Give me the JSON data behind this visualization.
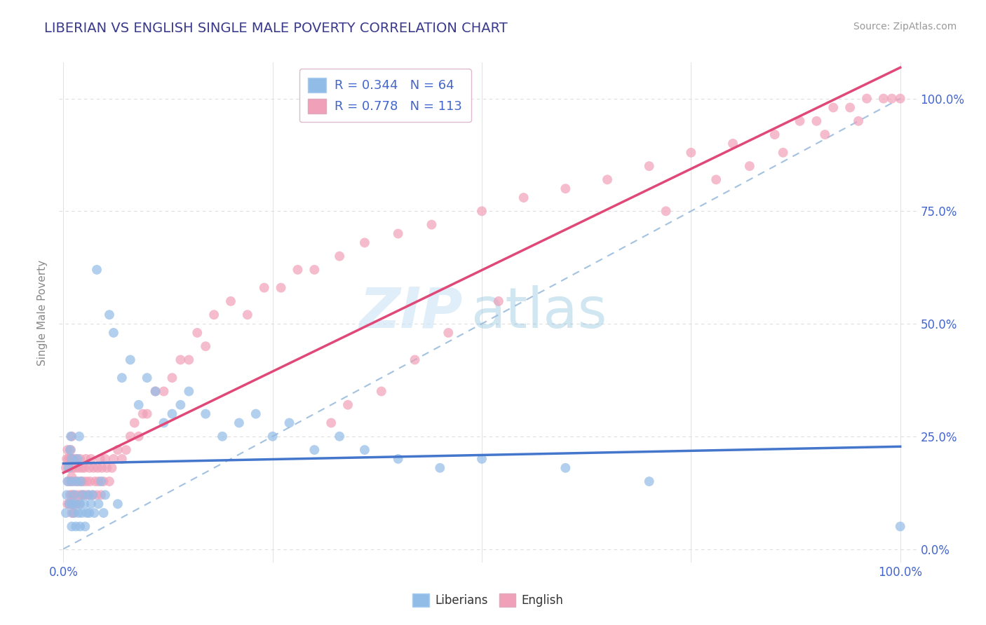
{
  "title": "LIBERIAN VS ENGLISH SINGLE MALE POVERTY CORRELATION CHART",
  "source": "Source: ZipAtlas.com",
  "ylabel": "Single Male Poverty",
  "title_color": "#3a3a8c",
  "title_fontsize": 14,
  "watermark_zip": "ZIP",
  "watermark_atlas": "atlas",
  "liberian_color": "#92bce8",
  "english_color": "#f0a0b8",
  "liberian_line_color": "#4477cc",
  "english_line_color": "#e04878",
  "dashed_line_color": "#99bbdd",
  "background_color": "#ffffff",
  "grid_color": "#dddddd",
  "axis_label_color": "#4466cc",
  "ylabel_color": "#888888",
  "source_color": "#999999",
  "legend_label_color": "#333333",
  "legend_value_color": "#4466cc",
  "legend_border_color": "#ffaacc",
  "liberian_n": 64,
  "english_n": 113,
  "liberian_r": 0.344,
  "english_r": 0.778,
  "marker_size": 100,
  "marker_alpha": 0.7,
  "liberian_scatter_x": [
    0.003,
    0.004,
    0.005,
    0.006,
    0.007,
    0.008,
    0.009,
    0.01,
    0.01,
    0.01,
    0.01,
    0.012,
    0.013,
    0.015,
    0.015,
    0.016,
    0.017,
    0.018,
    0.019,
    0.02,
    0.02,
    0.021,
    0.022,
    0.023,
    0.025,
    0.026,
    0.028,
    0.03,
    0.031,
    0.033,
    0.035,
    0.037,
    0.04,
    0.042,
    0.045,
    0.048,
    0.05,
    0.055,
    0.06,
    0.065,
    0.07,
    0.08,
    0.09,
    0.1,
    0.11,
    0.12,
    0.13,
    0.14,
    0.15,
    0.17,
    0.19,
    0.21,
    0.23,
    0.25,
    0.27,
    0.3,
    0.33,
    0.36,
    0.4,
    0.45,
    0.5,
    0.6,
    0.7,
    1.0
  ],
  "liberian_scatter_y": [
    0.08,
    0.12,
    0.15,
    0.18,
    0.1,
    0.22,
    0.25,
    0.05,
    0.1,
    0.15,
    0.2,
    0.08,
    0.12,
    0.05,
    0.1,
    0.15,
    0.2,
    0.08,
    0.25,
    0.05,
    0.1,
    0.15,
    0.08,
    0.12,
    0.1,
    0.05,
    0.08,
    0.12,
    0.08,
    0.1,
    0.12,
    0.08,
    0.62,
    0.1,
    0.15,
    0.08,
    0.12,
    0.52,
    0.48,
    0.1,
    0.38,
    0.42,
    0.32,
    0.38,
    0.35,
    0.28,
    0.3,
    0.32,
    0.35,
    0.3,
    0.25,
    0.28,
    0.3,
    0.25,
    0.28,
    0.22,
    0.25,
    0.22,
    0.2,
    0.18,
    0.2,
    0.18,
    0.15,
    0.05
  ],
  "english_scatter_x": [
    0.003,
    0.004,
    0.005,
    0.005,
    0.006,
    0.006,
    0.007,
    0.007,
    0.008,
    0.008,
    0.009,
    0.009,
    0.01,
    0.01,
    0.01,
    0.01,
    0.01,
    0.011,
    0.011,
    0.012,
    0.012,
    0.013,
    0.013,
    0.014,
    0.015,
    0.015,
    0.016,
    0.017,
    0.018,
    0.019,
    0.02,
    0.02,
    0.021,
    0.022,
    0.023,
    0.024,
    0.025,
    0.026,
    0.027,
    0.028,
    0.03,
    0.031,
    0.032,
    0.033,
    0.035,
    0.036,
    0.038,
    0.04,
    0.041,
    0.042,
    0.044,
    0.045,
    0.046,
    0.048,
    0.05,
    0.052,
    0.055,
    0.058,
    0.06,
    0.065,
    0.07,
    0.075,
    0.08,
    0.085,
    0.09,
    0.095,
    0.1,
    0.11,
    0.12,
    0.13,
    0.14,
    0.15,
    0.16,
    0.17,
    0.18,
    0.2,
    0.22,
    0.24,
    0.26,
    0.28,
    0.3,
    0.33,
    0.36,
    0.4,
    0.44,
    0.5,
    0.55,
    0.6,
    0.65,
    0.7,
    0.75,
    0.8,
    0.85,
    0.88,
    0.9,
    0.92,
    0.94,
    0.96,
    0.98,
    0.99,
    1.0,
    0.72,
    0.78,
    0.82,
    0.86,
    0.91,
    0.95,
    0.52,
    0.46,
    0.42,
    0.38,
    0.34,
    0.32
  ],
  "english_scatter_y": [
    0.18,
    0.2,
    0.1,
    0.22,
    0.15,
    0.2,
    0.1,
    0.18,
    0.12,
    0.2,
    0.15,
    0.22,
    0.08,
    0.12,
    0.16,
    0.2,
    0.25,
    0.1,
    0.18,
    0.12,
    0.2,
    0.08,
    0.15,
    0.18,
    0.1,
    0.2,
    0.12,
    0.15,
    0.18,
    0.1,
    0.12,
    0.2,
    0.15,
    0.18,
    0.12,
    0.15,
    0.18,
    0.12,
    0.2,
    0.15,
    0.12,
    0.18,
    0.15,
    0.2,
    0.12,
    0.18,
    0.15,
    0.12,
    0.18,
    0.15,
    0.2,
    0.12,
    0.18,
    0.15,
    0.2,
    0.18,
    0.15,
    0.18,
    0.2,
    0.22,
    0.2,
    0.22,
    0.25,
    0.28,
    0.25,
    0.3,
    0.3,
    0.35,
    0.35,
    0.38,
    0.42,
    0.42,
    0.48,
    0.45,
    0.52,
    0.55,
    0.52,
    0.58,
    0.58,
    0.62,
    0.62,
    0.65,
    0.68,
    0.7,
    0.72,
    0.75,
    0.78,
    0.8,
    0.82,
    0.85,
    0.88,
    0.9,
    0.92,
    0.95,
    0.95,
    0.98,
    0.98,
    1.0,
    1.0,
    1.0,
    1.0,
    0.75,
    0.82,
    0.85,
    0.88,
    0.92,
    0.95,
    0.55,
    0.48,
    0.42,
    0.35,
    0.32,
    0.28
  ]
}
